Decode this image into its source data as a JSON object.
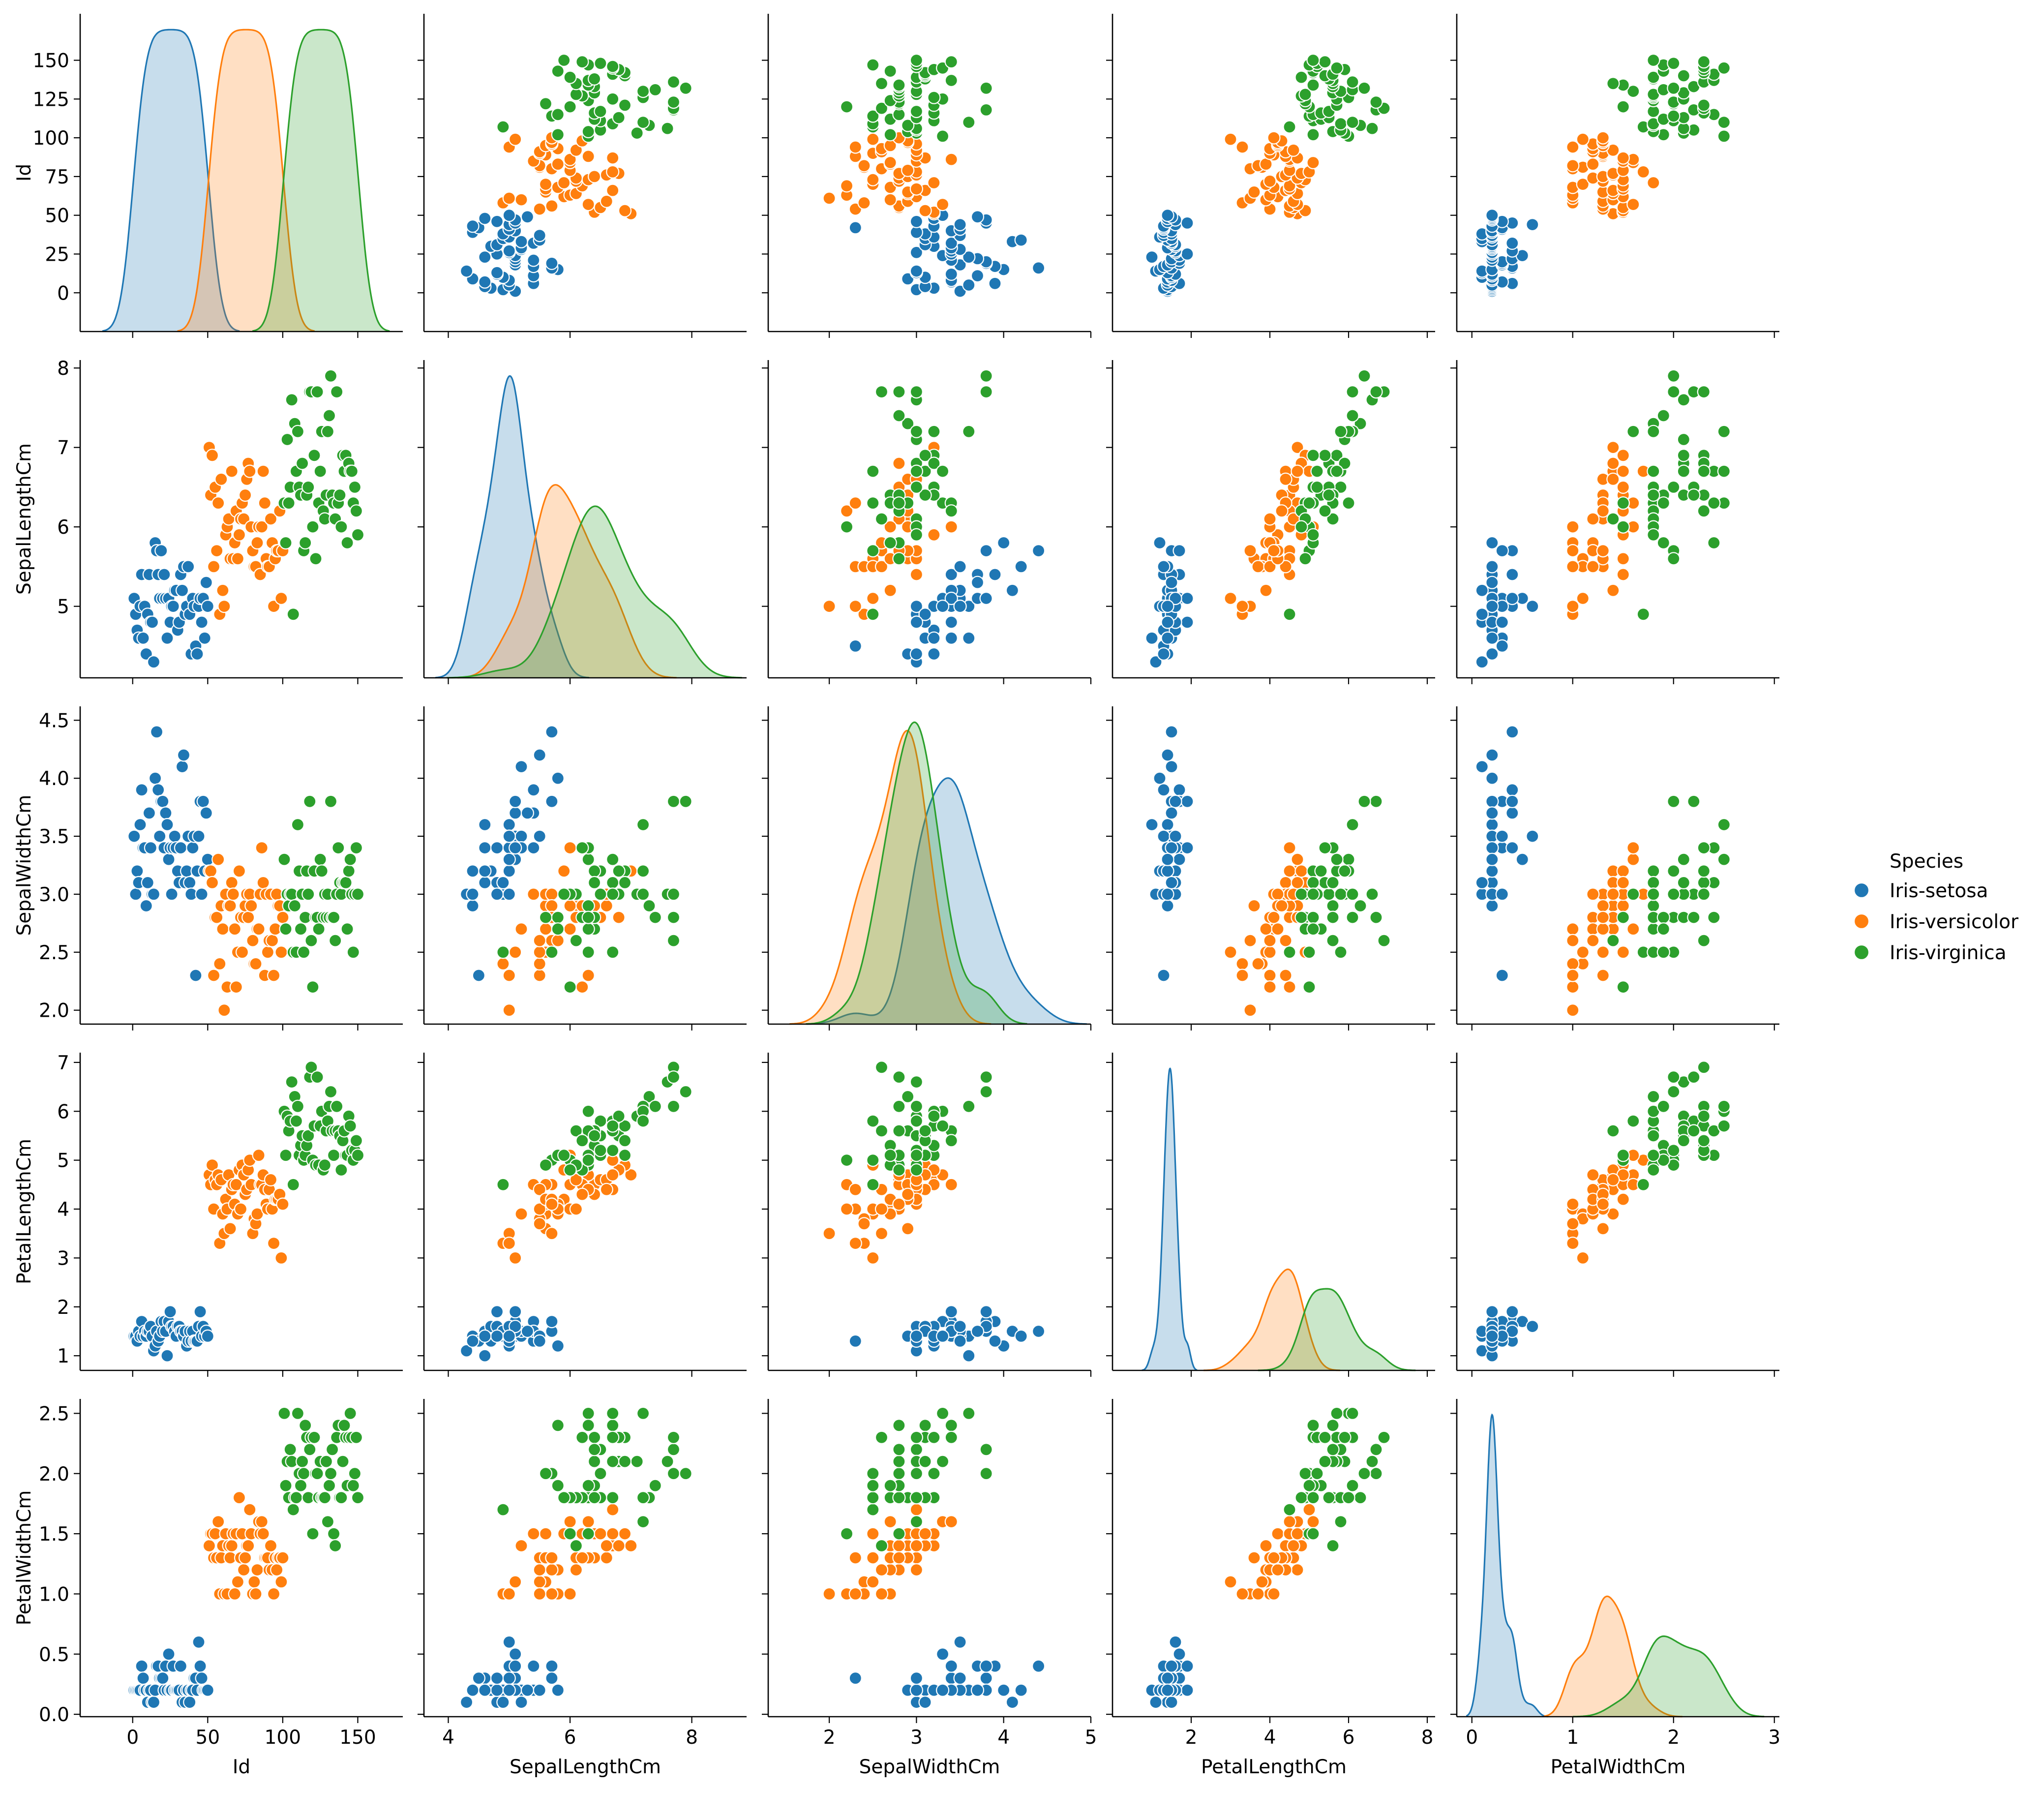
{
  "chart_data": {
    "type": "scatter",
    "title": "",
    "variables": [
      "Id",
      "SepalLengthCm",
      "SepalWidthCm",
      "PetalLengthCm",
      "PetalWidthCm"
    ],
    "diagonal": "kde",
    "off_diagonal": "scatter",
    "axes": {
      "Id": {
        "label": "Id",
        "range": [
          -25,
          180
        ],
        "ticks": [
          0,
          25,
          50,
          75,
          100,
          125,
          150
        ],
        "xtick_labels": [
          "0",
          "50",
          "100",
          "150"
        ],
        "ytick_labels": [
          "0",
          "25",
          "50",
          "75",
          "100",
          "125",
          "150"
        ]
      },
      "SepalLengthCm": {
        "label": "SepalLengthCm",
        "range": [
          4.1,
          8.1
        ],
        "ticks": [
          4,
          5,
          6,
          7,
          8
        ],
        "xtick_labels": [
          "4",
          "6",
          "8"
        ],
        "ytick_labels": [
          "5",
          "6",
          "7",
          "8"
        ]
      },
      "SepalWidthCm": {
        "label": "SepalWidthCm",
        "range": [
          1.88,
          4.62
        ],
        "ticks": [
          2,
          2.5,
          3,
          3.5,
          4,
          4.5
        ],
        "xtick_labels": [
          "2",
          "3",
          "4",
          "5"
        ],
        "ytick_labels": [
          "2.0",
          "2.5",
          "3.0",
          "3.5",
          "4.0",
          "4.5"
        ]
      },
      "PetalLengthCm": {
        "label": "PetalLengthCm",
        "range": [
          0.7,
          7.2
        ],
        "ticks": [
          1,
          2,
          3,
          4,
          5,
          6,
          7,
          8
        ],
        "xtick_labels": [
          "2",
          "4",
          "6",
          "8"
        ],
        "ytick_labels": [
          "1",
          "2",
          "3",
          "4",
          "5",
          "6",
          "7"
        ]
      },
      "PetalWidthCm": {
        "label": "PetalWidthCm",
        "range": [
          -0.02,
          2.62
        ],
        "ticks": [
          0,
          0.5,
          1,
          1.5,
          2,
          2.5,
          3
        ],
        "xtick_labels": [
          "0",
          "1",
          "2",
          "3"
        ],
        "ytick_labels": [
          "0.0",
          "0.5",
          "1.0",
          "1.5",
          "2.0",
          "2.5"
        ]
      }
    },
    "x_ranges": {
      "Id": [
        -35,
        180
      ],
      "SepalLengthCm": [
        3.6,
        8.9
      ],
      "SepalWidthCm": [
        1.3,
        5.0
      ],
      "PetalLengthCm": [
        0.0,
        8.2
      ],
      "PetalWidthCm": [
        -0.15,
        3.05
      ]
    },
    "legend": {
      "title": "Species",
      "position": "right-center"
    },
    "series": [
      {
        "name": "Iris-setosa",
        "color": "#1f77b4",
        "data": [
          [
            1,
            5.1,
            3.5,
            1.4,
            0.2
          ],
          [
            2,
            4.9,
            3.0,
            1.4,
            0.2
          ],
          [
            3,
            4.7,
            3.2,
            1.3,
            0.2
          ],
          [
            4,
            4.6,
            3.1,
            1.5,
            0.2
          ],
          [
            5,
            5.0,
            3.6,
            1.4,
            0.2
          ],
          [
            6,
            5.4,
            3.9,
            1.7,
            0.4
          ],
          [
            7,
            4.6,
            3.4,
            1.4,
            0.3
          ],
          [
            8,
            5.0,
            3.4,
            1.5,
            0.2
          ],
          [
            9,
            4.4,
            2.9,
            1.4,
            0.2
          ],
          [
            10,
            4.9,
            3.1,
            1.5,
            0.1
          ],
          [
            11,
            5.4,
            3.7,
            1.5,
            0.2
          ],
          [
            12,
            4.8,
            3.4,
            1.6,
            0.2
          ],
          [
            13,
            4.8,
            3.0,
            1.4,
            0.1
          ],
          [
            14,
            4.3,
            3.0,
            1.1,
            0.1
          ],
          [
            15,
            5.8,
            4.0,
            1.2,
            0.2
          ],
          [
            16,
            5.7,
            4.4,
            1.5,
            0.4
          ],
          [
            17,
            5.4,
            3.9,
            1.3,
            0.4
          ],
          [
            18,
            5.1,
            3.5,
            1.4,
            0.3
          ],
          [
            19,
            5.7,
            3.8,
            1.7,
            0.3
          ],
          [
            20,
            5.1,
            3.8,
            1.5,
            0.3
          ],
          [
            21,
            5.4,
            3.4,
            1.7,
            0.2
          ],
          [
            22,
            5.1,
            3.7,
            1.5,
            0.4
          ],
          [
            23,
            4.6,
            3.6,
            1.0,
            0.2
          ],
          [
            24,
            5.1,
            3.3,
            1.7,
            0.5
          ],
          [
            25,
            4.8,
            3.4,
            1.9,
            0.2
          ],
          [
            26,
            5.0,
            3.0,
            1.6,
            0.2
          ],
          [
            27,
            5.0,
            3.4,
            1.6,
            0.4
          ],
          [
            28,
            5.2,
            3.5,
            1.5,
            0.2
          ],
          [
            29,
            5.2,
            3.4,
            1.4,
            0.2
          ],
          [
            30,
            4.7,
            3.2,
            1.6,
            0.2
          ],
          [
            31,
            4.8,
            3.1,
            1.6,
            0.2
          ],
          [
            32,
            5.4,
            3.4,
            1.5,
            0.4
          ],
          [
            33,
            5.2,
            4.1,
            1.5,
            0.1
          ],
          [
            34,
            5.5,
            4.2,
            1.4,
            0.2
          ],
          [
            35,
            4.9,
            3.1,
            1.5,
            0.1
          ],
          [
            36,
            5.0,
            3.2,
            1.2,
            0.2
          ],
          [
            37,
            5.5,
            3.5,
            1.3,
            0.2
          ],
          [
            38,
            4.9,
            3.1,
            1.5,
            0.1
          ],
          [
            39,
            4.4,
            3.0,
            1.3,
            0.2
          ],
          [
            40,
            5.1,
            3.4,
            1.5,
            0.2
          ],
          [
            41,
            5.0,
            3.5,
            1.3,
            0.3
          ],
          [
            42,
            4.5,
            2.3,
            1.3,
            0.3
          ],
          [
            43,
            4.4,
            3.2,
            1.3,
            0.2
          ],
          [
            44,
            5.0,
            3.5,
            1.6,
            0.6
          ],
          [
            45,
            5.1,
            3.8,
            1.9,
            0.4
          ],
          [
            46,
            4.8,
            3.0,
            1.4,
            0.3
          ],
          [
            47,
            5.1,
            3.8,
            1.6,
            0.2
          ],
          [
            48,
            4.6,
            3.2,
            1.4,
            0.2
          ],
          [
            49,
            5.3,
            3.7,
            1.5,
            0.2
          ],
          [
            50,
            5.0,
            3.3,
            1.4,
            0.2
          ]
        ]
      },
      {
        "name": "Iris-versicolor",
        "color": "#ff7f0e",
        "data": [
          [
            51,
            7.0,
            3.2,
            4.7,
            1.4
          ],
          [
            52,
            6.4,
            3.2,
            4.5,
            1.5
          ],
          [
            53,
            6.9,
            3.1,
            4.9,
            1.5
          ],
          [
            54,
            5.5,
            2.3,
            4.0,
            1.3
          ],
          [
            55,
            6.5,
            2.8,
            4.6,
            1.5
          ],
          [
            56,
            5.7,
            2.8,
            4.5,
            1.3
          ],
          [
            57,
            6.3,
            3.3,
            4.7,
            1.6
          ],
          [
            58,
            4.9,
            2.4,
            3.3,
            1.0
          ],
          [
            59,
            6.6,
            2.9,
            4.6,
            1.3
          ],
          [
            60,
            5.2,
            2.7,
            3.9,
            1.4
          ],
          [
            61,
            5.0,
            2.0,
            3.5,
            1.0
          ],
          [
            62,
            5.9,
            3.0,
            4.2,
            1.5
          ],
          [
            63,
            6.0,
            2.2,
            4.0,
            1.0
          ],
          [
            64,
            6.1,
            2.9,
            4.7,
            1.4
          ],
          [
            65,
            5.6,
            2.9,
            3.6,
            1.3
          ],
          [
            66,
            6.7,
            3.1,
            4.4,
            1.4
          ],
          [
            67,
            5.6,
            3.0,
            4.5,
            1.5
          ],
          [
            68,
            5.8,
            2.7,
            4.1,
            1.0
          ],
          [
            69,
            6.2,
            2.2,
            4.5,
            1.5
          ],
          [
            70,
            5.6,
            2.5,
            3.9,
            1.1
          ],
          [
            71,
            5.9,
            3.2,
            4.8,
            1.8
          ],
          [
            72,
            6.1,
            2.8,
            4.0,
            1.3
          ],
          [
            73,
            6.3,
            2.5,
            4.9,
            1.5
          ],
          [
            74,
            6.1,
            2.8,
            4.7,
            1.2
          ],
          [
            75,
            6.4,
            2.9,
            4.3,
            1.3
          ],
          [
            76,
            6.6,
            3.0,
            4.4,
            1.4
          ],
          [
            77,
            6.8,
            2.8,
            4.8,
            1.4
          ],
          [
            78,
            6.7,
            3.0,
            5.0,
            1.7
          ],
          [
            79,
            6.0,
            2.9,
            4.5,
            1.5
          ],
          [
            80,
            5.7,
            2.6,
            3.5,
            1.0
          ],
          [
            81,
            5.5,
            2.4,
            3.8,
            1.1
          ],
          [
            82,
            5.5,
            2.4,
            3.7,
            1.0
          ],
          [
            83,
            5.8,
            2.7,
            3.9,
            1.2
          ],
          [
            84,
            6.0,
            2.7,
            5.1,
            1.6
          ],
          [
            85,
            5.4,
            3.0,
            4.5,
            1.5
          ],
          [
            86,
            6.0,
            3.4,
            4.5,
            1.6
          ],
          [
            87,
            6.7,
            3.1,
            4.7,
            1.5
          ],
          [
            88,
            6.3,
            2.3,
            4.4,
            1.3
          ],
          [
            89,
            5.6,
            3.0,
            4.1,
            1.3
          ],
          [
            90,
            5.5,
            2.5,
            4.0,
            1.3
          ],
          [
            91,
            5.5,
            2.6,
            4.4,
            1.2
          ],
          [
            92,
            6.1,
            3.0,
            4.6,
            1.4
          ],
          [
            93,
            5.8,
            2.6,
            4.0,
            1.2
          ],
          [
            94,
            5.0,
            2.3,
            3.3,
            1.0
          ],
          [
            95,
            5.6,
            2.7,
            4.2,
            1.3
          ],
          [
            96,
            5.7,
            3.0,
            4.2,
            1.2
          ],
          [
            97,
            5.7,
            2.9,
            4.2,
            1.3
          ],
          [
            98,
            6.2,
            2.9,
            4.3,
            1.3
          ],
          [
            99,
            5.1,
            2.5,
            3.0,
            1.1
          ],
          [
            100,
            5.7,
            2.8,
            4.1,
            1.3
          ]
        ]
      },
      {
        "name": "Iris-virginica",
        "color": "#2ca02c",
        "data": [
          [
            101,
            6.3,
            3.3,
            6.0,
            2.5
          ],
          [
            102,
            5.8,
            2.7,
            5.1,
            1.9
          ],
          [
            103,
            7.1,
            3.0,
            5.9,
            2.1
          ],
          [
            104,
            6.3,
            2.9,
            5.6,
            1.8
          ],
          [
            105,
            6.5,
            3.0,
            5.8,
            2.2
          ],
          [
            106,
            7.6,
            3.0,
            6.6,
            2.1
          ],
          [
            107,
            4.9,
            2.5,
            4.5,
            1.7
          ],
          [
            108,
            7.3,
            2.9,
            6.3,
            1.8
          ],
          [
            109,
            6.7,
            2.5,
            5.8,
            1.8
          ],
          [
            110,
            7.2,
            3.6,
            6.1,
            2.5
          ],
          [
            111,
            6.5,
            3.2,
            5.1,
            2.0
          ],
          [
            112,
            6.4,
            2.7,
            5.3,
            1.9
          ],
          [
            113,
            6.8,
            3.0,
            5.5,
            2.1
          ],
          [
            114,
            5.7,
            2.5,
            5.0,
            2.0
          ],
          [
            115,
            5.8,
            2.8,
            5.1,
            2.4
          ],
          [
            116,
            6.4,
            3.2,
            5.3,
            2.3
          ],
          [
            117,
            6.5,
            3.0,
            5.5,
            1.8
          ],
          [
            118,
            7.7,
            3.8,
            6.7,
            2.2
          ],
          [
            119,
            7.7,
            2.6,
            6.9,
            2.3
          ],
          [
            120,
            6.0,
            2.2,
            5.0,
            1.5
          ],
          [
            121,
            6.9,
            3.2,
            5.7,
            2.3
          ],
          [
            122,
            5.6,
            2.8,
            4.9,
            2.0
          ],
          [
            123,
            7.7,
            2.8,
            6.7,
            2.0
          ],
          [
            124,
            6.3,
            2.7,
            4.9,
            1.8
          ],
          [
            125,
            6.7,
            3.3,
            5.7,
            2.1
          ],
          [
            126,
            7.2,
            3.2,
            6.0,
            1.8
          ],
          [
            127,
            6.2,
            2.8,
            4.8,
            1.8
          ],
          [
            128,
            6.1,
            3.0,
            4.9,
            1.8
          ],
          [
            129,
            6.4,
            2.8,
            5.6,
            2.1
          ],
          [
            130,
            7.2,
            3.0,
            5.8,
            1.6
          ],
          [
            131,
            7.4,
            2.8,
            6.1,
            1.9
          ],
          [
            132,
            7.9,
            3.8,
            6.4,
            2.0
          ],
          [
            133,
            6.4,
            2.8,
            5.6,
            2.2
          ],
          [
            134,
            6.3,
            2.8,
            5.1,
            1.5
          ],
          [
            135,
            6.1,
            2.6,
            5.6,
            1.4
          ],
          [
            136,
            7.7,
            3.0,
            6.1,
            2.3
          ],
          [
            137,
            6.3,
            3.4,
            5.6,
            2.4
          ],
          [
            138,
            6.4,
            3.1,
            5.5,
            1.8
          ],
          [
            139,
            6.0,
            3.0,
            4.8,
            1.8
          ],
          [
            140,
            6.9,
            3.1,
            5.4,
            2.1
          ],
          [
            141,
            6.7,
            3.1,
            5.6,
            2.4
          ],
          [
            142,
            6.9,
            3.1,
            5.1,
            2.3
          ],
          [
            143,
            5.8,
            2.7,
            5.1,
            1.9
          ],
          [
            144,
            6.8,
            3.2,
            5.9,
            2.3
          ],
          [
            145,
            6.7,
            3.3,
            5.7,
            2.5
          ],
          [
            146,
            6.7,
            3.0,
            5.2,
            2.3
          ],
          [
            147,
            6.3,
            2.5,
            5.0,
            1.9
          ],
          [
            148,
            6.5,
            3.0,
            5.2,
            2.0
          ],
          [
            149,
            6.2,
            3.4,
            5.4,
            2.3
          ],
          [
            150,
            5.9,
            3.0,
            5.1,
            1.8
          ]
        ]
      }
    ]
  }
}
